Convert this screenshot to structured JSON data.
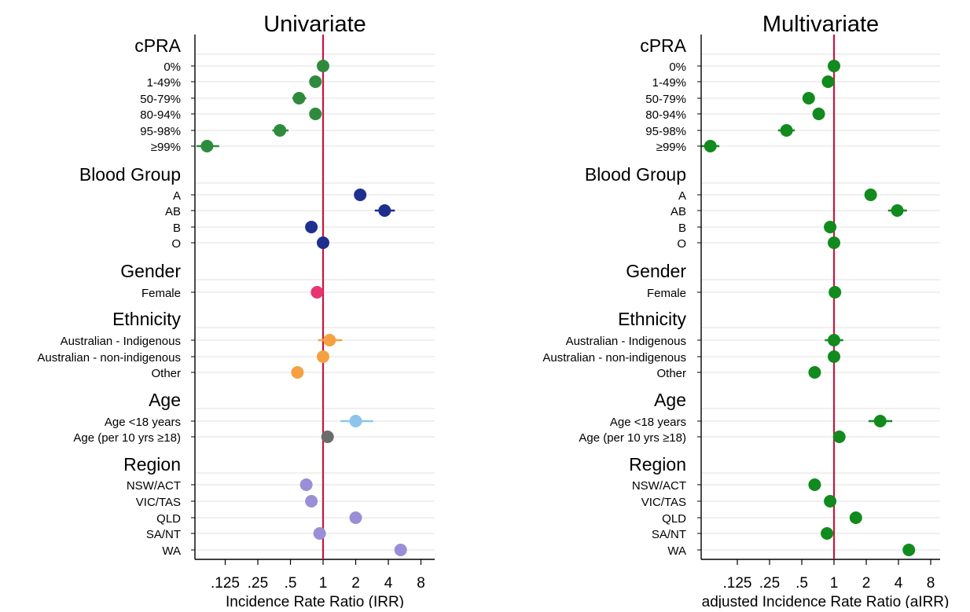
{
  "colors": {
    "cpra": "#2e8b3e",
    "blood_group": "#1f2f8f",
    "gender": "#e8356f",
    "ethnicity": "#f5a142",
    "age_child": "#8ec3ec",
    "age_adult": "#6b6b6b",
    "region": "#9a8fd6",
    "multivariate": "#118a1e",
    "reference_line": "#c8163c",
    "grid": "#e2e2e2"
  },
  "groups": [
    {
      "title": "cPRA",
      "rows": [
        "0%",
        "1-49%",
        "50-79%",
        "80-94%",
        "95-98%",
        "≥99%"
      ]
    },
    {
      "title": "Blood Group",
      "rows": [
        "A",
        "AB",
        "B",
        "O"
      ]
    },
    {
      "title": "Gender",
      "rows": [
        "Female"
      ]
    },
    {
      "title": "Ethnicity",
      "rows": [
        "Australian - Indigenous",
        "Australian - non-indigenous",
        "Other"
      ]
    },
    {
      "title": "Age",
      "rows": [
        "Age <18 years",
        "Age (per 10 yrs ≥18)"
      ]
    },
    {
      "title": "Region",
      "rows": [
        "NSW/ACT",
        "VIC/TAS",
        "QLD",
        "SA/NT",
        "WA"
      ]
    }
  ],
  "chart_data": [
    {
      "type": "scatter",
      "title": "Univariate",
      "xlabel": "Incidence Rate Ratio (IRR)",
      "x_scale": "log2",
      "x_ticks": [
        0.125,
        0.25,
        0.5,
        1,
        2,
        4,
        8
      ],
      "x_tick_labels": [
        ".125",
        ".25",
        ".5",
        "1",
        "2",
        "4",
        "8"
      ],
      "xlim": [
        0.03,
        10
      ],
      "reference_x": 1,
      "points": [
        {
          "group": "cPRA",
          "label": "0%",
          "estimate": 1.0,
          "lower": 1.0,
          "upper": 1.0,
          "color_key": "cpra"
        },
        {
          "group": "cPRA",
          "label": "1-49%",
          "estimate": 0.85,
          "lower": 0.75,
          "upper": 0.95,
          "color_key": "cpra"
        },
        {
          "group": "cPRA",
          "label": "50-79%",
          "estimate": 0.6,
          "lower": 0.52,
          "upper": 0.7,
          "color_key": "cpra"
        },
        {
          "group": "cPRA",
          "label": "80-94%",
          "estimate": 0.85,
          "lower": 0.75,
          "upper": 0.97,
          "color_key": "cpra"
        },
        {
          "group": "cPRA",
          "label": "95-98%",
          "estimate": 0.4,
          "lower": 0.34,
          "upper": 0.48,
          "color_key": "cpra"
        },
        {
          "group": "cPRA",
          "label": "≥99%",
          "estimate": 0.085,
          "lower": 0.068,
          "upper": 0.11,
          "color_key": "cpra"
        },
        {
          "group": "Blood Group",
          "label": "A",
          "estimate": 2.2,
          "lower": 2.1,
          "upper": 2.35,
          "color_key": "blood_group"
        },
        {
          "group": "Blood Group",
          "label": "AB",
          "estimate": 3.7,
          "lower": 3.0,
          "upper": 4.6,
          "color_key": "blood_group"
        },
        {
          "group": "Blood Group",
          "label": "B",
          "estimate": 0.78,
          "lower": 0.7,
          "upper": 0.88,
          "color_key": "blood_group"
        },
        {
          "group": "Blood Group",
          "label": "O",
          "estimate": 1.0,
          "lower": 1.0,
          "upper": 1.0,
          "color_key": "blood_group"
        },
        {
          "group": "Gender",
          "label": "Female",
          "estimate": 0.88,
          "lower": 0.84,
          "upper": 0.93,
          "color_key": "gender"
        },
        {
          "group": "Ethnicity",
          "label": "Australian - Indigenous",
          "estimate": 1.15,
          "lower": 0.9,
          "upper": 1.5,
          "color_key": "ethnicity"
        },
        {
          "group": "Ethnicity",
          "label": "Australian - non-indigenous",
          "estimate": 1.0,
          "lower": 1.0,
          "upper": 1.0,
          "color_key": "ethnicity"
        },
        {
          "group": "Ethnicity",
          "label": "Other",
          "estimate": 0.58,
          "lower": 0.54,
          "upper": 0.62,
          "color_key": "ethnicity"
        },
        {
          "group": "Age",
          "label": "Age <18 years",
          "estimate": 2.0,
          "lower": 1.45,
          "upper": 2.9,
          "color_key": "age_child"
        },
        {
          "group": "Age",
          "label": "Age (per 10 yrs ≥18)",
          "estimate": 1.1,
          "lower": 1.06,
          "upper": 1.14,
          "color_key": "age_adult"
        },
        {
          "group": "Region",
          "label": "NSW/ACT",
          "estimate": 0.7,
          "lower": 0.66,
          "upper": 0.74,
          "color_key": "region"
        },
        {
          "group": "Region",
          "label": "VIC/TAS",
          "estimate": 0.78,
          "lower": 0.74,
          "upper": 0.82,
          "color_key": "region"
        },
        {
          "group": "Region",
          "label": "QLD",
          "estimate": 2.0,
          "lower": 1.95,
          "upper": 2.05,
          "color_key": "region"
        },
        {
          "group": "Region",
          "label": "SA/NT",
          "estimate": 0.93,
          "lower": 0.82,
          "upper": 1.06,
          "color_key": "region"
        },
        {
          "group": "Region",
          "label": "WA",
          "estimate": 5.2,
          "lower": 4.6,
          "upper": 5.9,
          "color_key": "region"
        }
      ]
    },
    {
      "type": "scatter",
      "title": "Multivariate",
      "xlabel": "adjusted Incidence Rate Ratio (aIRR)",
      "x_scale": "log2",
      "x_ticks": [
        0.125,
        0.25,
        0.5,
        1,
        2,
        4,
        8
      ],
      "x_tick_labels": [
        ".125",
        ".25",
        ".5",
        "1",
        "2",
        "4",
        "8"
      ],
      "xlim": [
        0.03,
        10
      ],
      "reference_x": 1,
      "points": [
        {
          "group": "cPRA",
          "label": "0%",
          "estimate": 1.0,
          "lower": 1.0,
          "upper": 1.0,
          "color_key": "multivariate"
        },
        {
          "group": "cPRA",
          "label": "1-49%",
          "estimate": 0.88,
          "lower": 0.8,
          "upper": 0.96,
          "color_key": "multivariate"
        },
        {
          "group": "cPRA",
          "label": "50-79%",
          "estimate": 0.58,
          "lower": 0.52,
          "upper": 0.66,
          "color_key": "multivariate"
        },
        {
          "group": "cPRA",
          "label": "80-94%",
          "estimate": 0.72,
          "lower": 0.64,
          "upper": 0.8,
          "color_key": "multivariate"
        },
        {
          "group": "cPRA",
          "label": "95-98%",
          "estimate": 0.36,
          "lower": 0.3,
          "upper": 0.43,
          "color_key": "multivariate"
        },
        {
          "group": "cPRA",
          "label": "≥99%",
          "estimate": 0.07,
          "lower": 0.058,
          "upper": 0.085,
          "color_key": "multivariate"
        },
        {
          "group": "Blood Group",
          "label": "A",
          "estimate": 2.2,
          "lower": 2.1,
          "upper": 2.35,
          "color_key": "multivariate"
        },
        {
          "group": "Blood Group",
          "label": "AB",
          "estimate": 3.9,
          "lower": 3.2,
          "upper": 4.8,
          "color_key": "multivariate"
        },
        {
          "group": "Blood Group",
          "label": "B",
          "estimate": 0.92,
          "lower": 0.86,
          "upper": 0.98,
          "color_key": "multivariate"
        },
        {
          "group": "Blood Group",
          "label": "O",
          "estimate": 1.0,
          "lower": 1.0,
          "upper": 1.0,
          "color_key": "multivariate"
        },
        {
          "group": "Gender",
          "label": "Female",
          "estimate": 1.02,
          "lower": 0.98,
          "upper": 1.06,
          "color_key": "multivariate"
        },
        {
          "group": "Ethnicity",
          "label": "Australian - Indigenous",
          "estimate": 1.0,
          "lower": 0.82,
          "upper": 1.22,
          "color_key": "multivariate"
        },
        {
          "group": "Ethnicity",
          "label": "Australian - non-indigenous",
          "estimate": 1.0,
          "lower": 1.0,
          "upper": 1.0,
          "color_key": "multivariate"
        },
        {
          "group": "Ethnicity",
          "label": "Other",
          "estimate": 0.66,
          "lower": 0.62,
          "upper": 0.7,
          "color_key": "multivariate"
        },
        {
          "group": "Age",
          "label": "Age <18 years",
          "estimate": 2.7,
          "lower": 2.1,
          "upper": 3.5,
          "color_key": "multivariate"
        },
        {
          "group": "Age",
          "label": "Age (per 10 yrs ≥18)",
          "estimate": 1.12,
          "lower": 1.08,
          "upper": 1.16,
          "color_key": "multivariate"
        },
        {
          "group": "Region",
          "label": "NSW/ACT",
          "estimate": 0.66,
          "lower": 0.62,
          "upper": 0.7,
          "color_key": "multivariate"
        },
        {
          "group": "Region",
          "label": "VIC/TAS",
          "estimate": 0.92,
          "lower": 0.88,
          "upper": 0.96,
          "color_key": "multivariate"
        },
        {
          "group": "Region",
          "label": "QLD",
          "estimate": 1.6,
          "lower": 1.55,
          "upper": 1.66,
          "color_key": "multivariate"
        },
        {
          "group": "Region",
          "label": "SA/NT",
          "estimate": 0.86,
          "lower": 0.8,
          "upper": 0.92,
          "color_key": "multivariate"
        },
        {
          "group": "Region",
          "label": "WA",
          "estimate": 5.0,
          "lower": 4.5,
          "upper": 5.6,
          "color_key": "multivariate"
        }
      ]
    }
  ]
}
